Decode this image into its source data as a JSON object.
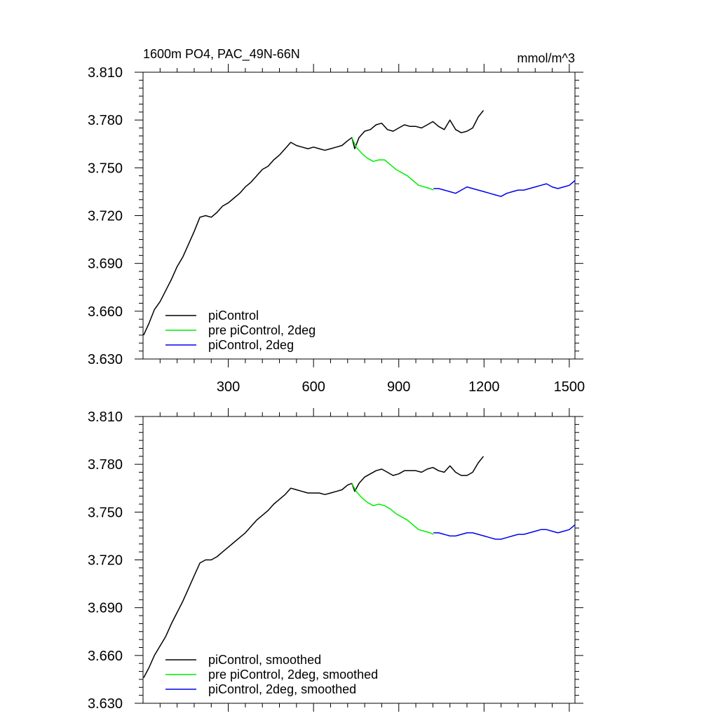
{
  "chart_data": [
    {
      "type": "line",
      "title": "1600m PO4, PAC_49N-66N",
      "units": "mmol/m^3",
      "xlabel": "",
      "ylabel": "",
      "xlim": [
        0,
        1520
      ],
      "ylim": [
        3.63,
        3.81
      ],
      "xticks": [
        300,
        600,
        900,
        1200,
        1500
      ],
      "xtick_labels": [
        "300",
        "600",
        "900",
        "1200",
        "1500"
      ],
      "yticks": [
        3.63,
        3.66,
        3.69,
        3.72,
        3.75,
        3.78,
        3.81
      ],
      "ytick_labels": [
        "3.630",
        "3.660",
        "3.690",
        "3.720",
        "3.750",
        "3.780",
        "3.810"
      ],
      "legend_position": "bottom-left",
      "grid": false,
      "series": [
        {
          "name": "piControl",
          "color": "#000000",
          "x": [
            2,
            20,
            40,
            60,
            80,
            100,
            120,
            140,
            160,
            180,
            200,
            220,
            240,
            260,
            280,
            300,
            320,
            340,
            360,
            380,
            400,
            420,
            440,
            460,
            480,
            500,
            520,
            540,
            560,
            580,
            600,
            620,
            640,
            660,
            680,
            700,
            720,
            735,
            745,
            760,
            780,
            800,
            820,
            840,
            860,
            880,
            900,
            920,
            940,
            960,
            980,
            1000,
            1020,
            1040,
            1060,
            1080,
            1100,
            1120,
            1140,
            1160,
            1180,
            1198
          ],
          "y": [
            3.645,
            3.652,
            3.661,
            3.666,
            3.673,
            3.68,
            3.688,
            3.694,
            3.702,
            3.71,
            3.719,
            3.72,
            3.719,
            3.722,
            3.726,
            3.728,
            3.731,
            3.734,
            3.738,
            3.741,
            3.745,
            3.749,
            3.751,
            3.755,
            3.758,
            3.762,
            3.766,
            3.764,
            3.763,
            3.762,
            3.763,
            3.762,
            3.761,
            3.762,
            3.763,
            3.764,
            3.767,
            3.769,
            3.762,
            3.769,
            3.773,
            3.774,
            3.777,
            3.778,
            3.774,
            3.773,
            3.775,
            3.777,
            3.776,
            3.776,
            3.775,
            3.777,
            3.779,
            3.776,
            3.774,
            3.78,
            3.774,
            3.772,
            3.773,
            3.775,
            3.782,
            3.786
          ]
        },
        {
          "name": "pre piControl, 2deg",
          "color": "#00ee00",
          "x": [
            735,
            750,
            770,
            790,
            810,
            830,
            850,
            870,
            890,
            910,
            930,
            950,
            970,
            990,
            1010,
            1022
          ],
          "y": [
            3.769,
            3.763,
            3.759,
            3.756,
            3.754,
            3.755,
            3.755,
            3.752,
            3.749,
            3.747,
            3.745,
            3.742,
            3.739,
            3.738,
            3.737,
            3.736
          ]
        },
        {
          "name": "piControl, 2deg",
          "color": "#0000ee",
          "x": [
            1022,
            1040,
            1060,
            1080,
            1100,
            1120,
            1140,
            1160,
            1180,
            1200,
            1220,
            1240,
            1260,
            1280,
            1300,
            1320,
            1340,
            1360,
            1380,
            1400,
            1420,
            1440,
            1460,
            1480,
            1500,
            1520
          ],
          "y": [
            3.737,
            3.737,
            3.736,
            3.735,
            3.734,
            3.736,
            3.738,
            3.737,
            3.736,
            3.735,
            3.734,
            3.733,
            3.732,
            3.734,
            3.735,
            3.736,
            3.736,
            3.737,
            3.738,
            3.739,
            3.74,
            3.738,
            3.737,
            3.738,
            3.739,
            3.742
          ]
        }
      ]
    },
    {
      "type": "line",
      "title": "",
      "units": "",
      "xlabel": "",
      "ylabel": "",
      "xlim": [
        0,
        1520
      ],
      "ylim": [
        3.63,
        3.81
      ],
      "xticks": [
        300,
        600,
        900,
        1200,
        1500
      ],
      "xtick_labels": [],
      "yticks": [
        3.63,
        3.66,
        3.69,
        3.72,
        3.75,
        3.78,
        3.81
      ],
      "ytick_labels": [
        "3.630",
        "3.660",
        "3.690",
        "3.720",
        "3.750",
        "3.780",
        "3.810"
      ],
      "legend_position": "bottom-left",
      "grid": false,
      "series": [
        {
          "name": "piControl, smoothed",
          "color": "#000000",
          "x": [
            2,
            20,
            40,
            60,
            80,
            100,
            120,
            140,
            160,
            180,
            200,
            220,
            240,
            260,
            280,
            300,
            320,
            340,
            360,
            380,
            400,
            420,
            440,
            460,
            480,
            500,
            520,
            540,
            560,
            580,
            600,
            620,
            640,
            660,
            680,
            700,
            720,
            735,
            745,
            760,
            780,
            800,
            820,
            840,
            860,
            880,
            900,
            920,
            940,
            960,
            980,
            1000,
            1020,
            1040,
            1060,
            1080,
            1100,
            1120,
            1140,
            1160,
            1180,
            1198
          ],
          "y": [
            3.646,
            3.652,
            3.66,
            3.666,
            3.672,
            3.68,
            3.687,
            3.694,
            3.702,
            3.71,
            3.718,
            3.72,
            3.72,
            3.722,
            3.725,
            3.728,
            3.731,
            3.734,
            3.737,
            3.741,
            3.745,
            3.748,
            3.751,
            3.755,
            3.758,
            3.761,
            3.765,
            3.764,
            3.763,
            3.762,
            3.762,
            3.762,
            3.761,
            3.762,
            3.763,
            3.764,
            3.767,
            3.768,
            3.763,
            3.768,
            3.772,
            3.774,
            3.776,
            3.777,
            3.775,
            3.773,
            3.774,
            3.776,
            3.776,
            3.776,
            3.775,
            3.777,
            3.778,
            3.776,
            3.775,
            3.779,
            3.775,
            3.773,
            3.773,
            3.775,
            3.781,
            3.785
          ]
        },
        {
          "name": "pre piControl, 2deg, smoothed",
          "color": "#00ee00",
          "x": [
            735,
            750,
            770,
            790,
            810,
            830,
            850,
            870,
            890,
            910,
            930,
            950,
            970,
            990,
            1010,
            1022
          ],
          "y": [
            3.768,
            3.763,
            3.759,
            3.756,
            3.754,
            3.755,
            3.754,
            3.752,
            3.749,
            3.747,
            3.745,
            3.742,
            3.739,
            3.738,
            3.737,
            3.736
          ]
        },
        {
          "name": "piControl, 2deg, smoothed",
          "color": "#0000ee",
          "x": [
            1022,
            1040,
            1060,
            1080,
            1100,
            1120,
            1140,
            1160,
            1180,
            1200,
            1220,
            1240,
            1260,
            1280,
            1300,
            1320,
            1340,
            1360,
            1380,
            1400,
            1420,
            1440,
            1460,
            1480,
            1500,
            1520
          ],
          "y": [
            3.737,
            3.737,
            3.736,
            3.735,
            3.735,
            3.736,
            3.737,
            3.737,
            3.736,
            3.735,
            3.734,
            3.733,
            3.733,
            3.734,
            3.735,
            3.736,
            3.736,
            3.737,
            3.738,
            3.739,
            3.739,
            3.738,
            3.737,
            3.738,
            3.739,
            3.742
          ]
        }
      ]
    }
  ]
}
